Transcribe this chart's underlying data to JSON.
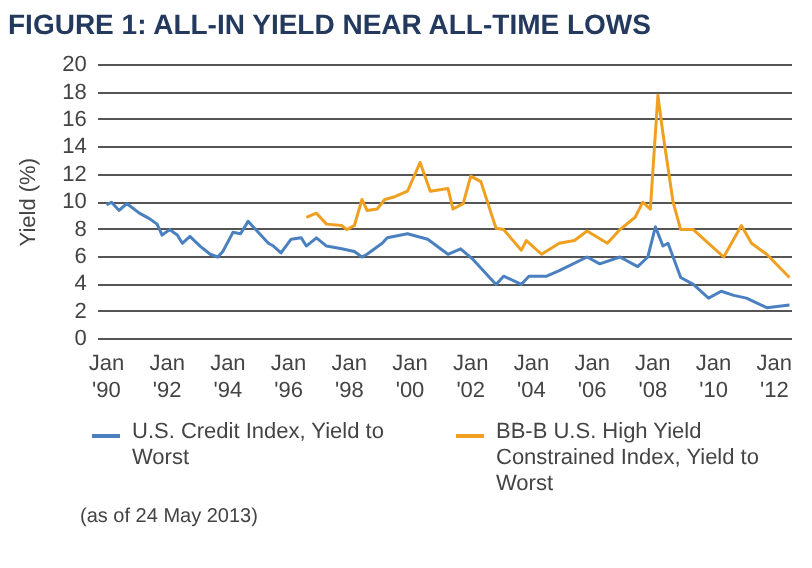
{
  "chart_data": {
    "type": "line",
    "title": "FIGURE 1: ALL-IN YIELD NEAR ALL-TIME LOWS",
    "ylabel": "Yield (%)",
    "xlim": [
      "1989-10",
      "2012-08"
    ],
    "xticks": [
      {
        "value": "1990-01",
        "label": "Jan '90"
      },
      {
        "value": "1992-01",
        "label": "Jan '92"
      },
      {
        "value": "1994-01",
        "label": "Jan '94"
      },
      {
        "value": "1996-01",
        "label": "Jan '96"
      },
      {
        "value": "1998-01",
        "label": "Jan '98"
      },
      {
        "value": "2000-01",
        "label": "Jan '00"
      },
      {
        "value": "2002-01",
        "label": "Jan '02"
      },
      {
        "value": "2004-01",
        "label": "Jan '04"
      },
      {
        "value": "2006-01",
        "label": "Jan '06"
      },
      {
        "value": "2008-01",
        "label": "Jan '08"
      },
      {
        "value": "2010-01",
        "label": "Jan '10"
      },
      {
        "value": "2012-01",
        "label": "Jan '12"
      }
    ],
    "ylim": [
      0,
      20
    ],
    "yticks": [
      0,
      2,
      4,
      6,
      8,
      10,
      12,
      14,
      16,
      18,
      20
    ],
    "grid": "y",
    "legend": "bottom",
    "series": [
      {
        "name": "U.S. Credit Index, Yield to Worst",
        "color": "#4a80c0",
        "x": [
          "1990-01",
          "1990-03",
          "1990-06",
          "1990-09",
          "1991-02",
          "1991-06",
          "1991-09",
          "1991-11",
          "1992-02",
          "1992-05",
          "1992-07",
          "1992-10",
          "1993-02",
          "1993-06",
          "1993-09",
          "1993-11",
          "1994-03",
          "1994-06",
          "1994-09",
          "1994-12",
          "1995-05",
          "1995-07",
          "1995-10",
          "1996-02",
          "1996-06",
          "1996-08",
          "1996-12",
          "1997-04",
          "1997-10",
          "1998-03",
          "1998-06",
          "1998-08",
          "1999-02",
          "1999-04",
          "1999-12",
          "2000-08",
          "2001-04",
          "2001-09",
          "2002-02",
          "2002-11",
          "2003-02",
          "2003-09",
          "2003-12",
          "2004-07",
          "2004-12",
          "2005-11",
          "2006-04",
          "2006-12",
          "2007-07",
          "2007-11",
          "2008-02",
          "2008-05",
          "2008-07",
          "2008-12",
          "2009-05",
          "2009-11",
          "2010-04",
          "2010-09",
          "2011-02",
          "2011-10",
          "2012-07"
        ],
        "values": [
          9.8,
          10.0,
          9.4,
          9.9,
          9.2,
          8.8,
          8.4,
          7.6,
          8.0,
          7.6,
          7.0,
          7.5,
          6.8,
          6.2,
          6.0,
          6.4,
          7.8,
          7.7,
          8.6,
          8.0,
          7.0,
          6.8,
          6.3,
          7.3,
          7.4,
          6.8,
          7.4,
          6.8,
          6.6,
          6.4,
          6.0,
          6.2,
          7.0,
          7.4,
          7.7,
          7.3,
          6.2,
          6.6,
          5.8,
          4.0,
          4.6,
          4.0,
          4.6,
          4.6,
          5.0,
          6.0,
          5.5,
          6.0,
          5.3,
          6.0,
          8.2,
          6.8,
          7.0,
          4.5,
          4.0,
          3.0,
          3.5,
          3.2,
          3.0,
          2.3,
          2.5
        ]
      },
      {
        "name": "BB-B U.S. High Yield Constrained Index, Yield to Worst",
        "color": "#f0a020",
        "x": [
          "1996-08",
          "1996-12",
          "1997-04",
          "1997-10",
          "1997-12",
          "1998-03",
          "1998-06",
          "1998-08",
          "1998-12",
          "1999-03",
          "1999-07",
          "1999-12",
          "2000-05",
          "2000-09",
          "2001-04",
          "2001-06",
          "2001-10",
          "2002-01",
          "2002-05",
          "2002-11",
          "2003-02",
          "2003-09",
          "2003-11",
          "2004-05",
          "2004-12",
          "2005-06",
          "2005-11",
          "2006-07",
          "2006-12",
          "2007-06",
          "2007-09",
          "2007-12",
          "2008-03",
          "2008-05",
          "2008-09",
          "2008-12",
          "2009-05",
          "2009-11",
          "2010-05",
          "2010-12",
          "2011-04",
          "2011-10",
          "2012-07"
        ],
        "values": [
          8.9,
          9.2,
          8.4,
          8.3,
          8.0,
          8.3,
          10.2,
          9.4,
          9.5,
          10.2,
          10.4,
          10.8,
          12.9,
          10.8,
          11.0,
          9.5,
          9.9,
          11.9,
          11.5,
          8.1,
          8.0,
          6.5,
          7.2,
          6.2,
          7.0,
          7.2,
          7.9,
          7.0,
          8.0,
          8.9,
          10.0,
          9.5,
          17.8,
          15.0,
          10.0,
          8.0,
          8.0,
          7.0,
          6.0,
          8.3,
          7.0,
          6.2,
          4.5
        ]
      }
    ],
    "annotations": [
      "(as of 24 May 2013)"
    ]
  }
}
